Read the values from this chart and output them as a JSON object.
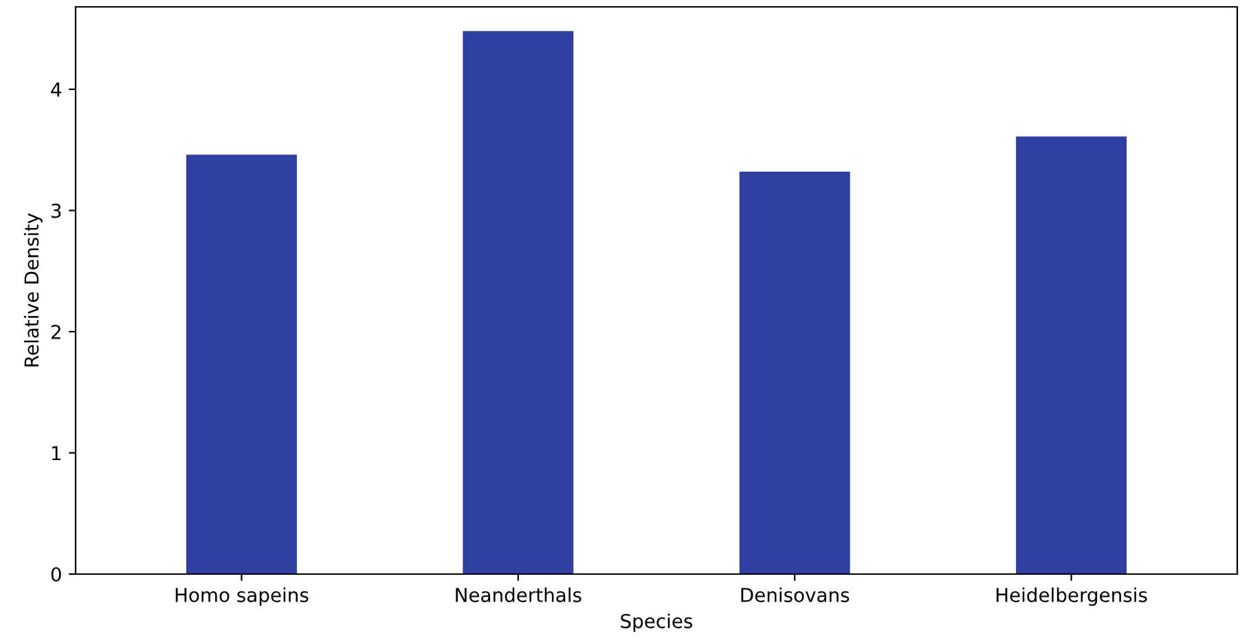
{
  "chart_data": {
    "type": "bar",
    "xlabel": "Species",
    "ylabel": "Relative Density",
    "categories": [
      "Homo sapeins",
      "Neanderthals",
      "Denisovans",
      "Heidelbergensis"
    ],
    "values": [
      3.46,
      4.48,
      3.32,
      3.61
    ],
    "color": "#2e3f9f",
    "ylim": [
      0,
      4.68
    ],
    "yticks": [
      0,
      1,
      2,
      3,
      4
    ],
    "grid": false
  }
}
